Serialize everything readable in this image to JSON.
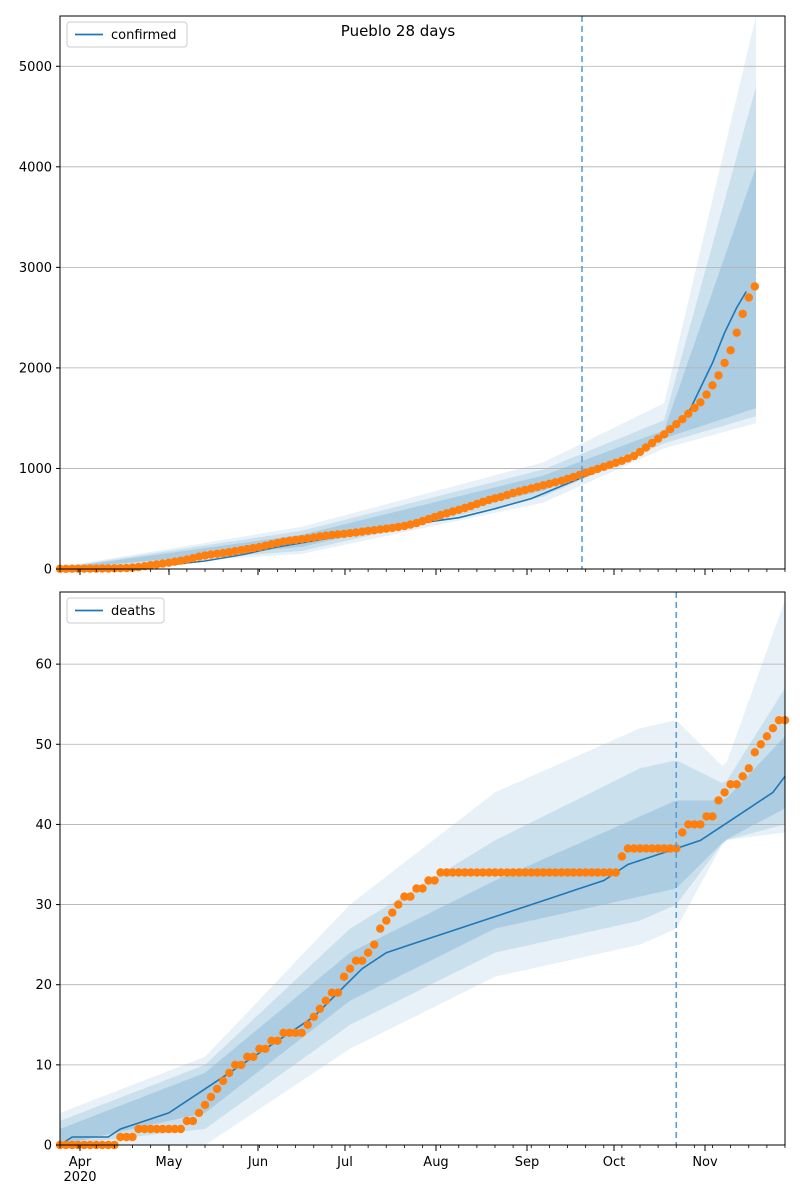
{
  "chart_data": [
    {
      "type": "line",
      "title": "Pueblo 28 days",
      "legend": {
        "placement": "top-left",
        "entries": [
          "confirmed"
        ]
      },
      "ylim": [
        0,
        5500
      ],
      "yticks": [
        0,
        1000,
        2000,
        3000,
        4000,
        5000
      ],
      "grid": "y",
      "forecast_start_day": 225,
      "series": [
        {
          "name": "confirmed",
          "kind": "model-line",
          "points": [
            [
              0,
              2
            ],
            [
              30,
              8
            ],
            [
              45,
              40
            ],
            [
              60,
              80
            ],
            [
              75,
              140
            ],
            [
              90,
              220
            ],
            [
              105,
              280
            ],
            [
              120,
              350
            ],
            [
              135,
              400
            ],
            [
              150,
              460
            ],
            [
              165,
              510
            ],
            [
              180,
              600
            ],
            [
              195,
              700
            ],
            [
              210,
              850
            ],
            [
              225,
              1000
            ],
            [
              240,
              1180
            ],
            [
              250,
              1340
            ],
            [
              260,
              1550
            ],
            [
              265,
              1800
            ],
            [
              270,
              2050
            ],
            [
              275,
              2350
            ],
            [
              280,
              2600
            ],
            [
              284,
              2760
            ]
          ]
        },
        {
          "kind": "observed-points",
          "points": [
            [
              0,
              2
            ],
            [
              10,
              3
            ],
            [
              20,
              5
            ],
            [
              28,
              10
            ],
            [
              33,
              20
            ],
            [
              38,
              40
            ],
            [
              43,
              55
            ],
            [
              48,
              75
            ],
            [
              53,
              95
            ],
            [
              58,
              125
            ],
            [
              63,
              145
            ],
            [
              68,
              160
            ],
            [
              73,
              180
            ],
            [
              78,
              200
            ],
            [
              83,
              220
            ],
            [
              88,
              250
            ],
            [
              93,
              275
            ],
            [
              98,
              290
            ],
            [
              103,
              305
            ],
            [
              108,
              325
            ],
            [
              113,
              340
            ],
            [
              118,
              350
            ],
            [
              123,
              365
            ],
            [
              128,
              380
            ],
            [
              133,
              395
            ],
            [
              138,
              410
            ],
            [
              143,
              430
            ],
            [
              148,
              460
            ],
            [
              153,
              500
            ],
            [
              158,
              540
            ],
            [
              163,
              575
            ],
            [
              168,
              610
            ],
            [
              173,
              650
            ],
            [
              178,
              690
            ],
            [
              183,
              720
            ],
            [
              188,
              760
            ],
            [
              193,
              790
            ],
            [
              198,
              820
            ],
            [
              203,
              850
            ],
            [
              208,
              880
            ],
            [
              213,
              920
            ],
            [
              218,
              960
            ],
            [
              223,
              1000
            ],
            [
              228,
              1040
            ],
            [
              233,
              1080
            ],
            [
              238,
              1130
            ],
            [
              242,
              1200
            ],
            [
              246,
              1270
            ],
            [
              250,
              1340
            ],
            [
              254,
              1420
            ],
            [
              258,
              1500
            ],
            [
              262,
              1590
            ],
            [
              266,
              1680
            ],
            [
              269,
              1790
            ],
            [
              272,
              1900
            ],
            [
              275,
              2050
            ],
            [
              278,
              2200
            ],
            [
              280,
              2350
            ],
            [
              282,
              2500
            ],
            [
              284,
              2650
            ],
            [
              286,
              2750
            ],
            [
              288,
              2830
            ],
            [
              289,
              2970
            ]
          ]
        }
      ],
      "bands": [
        {
          "lower": [
            [
              0,
              0
            ],
            [
              100,
              220
            ],
            [
              200,
              780
            ],
            [
              250,
              1300
            ],
            [
              288,
              1600
            ]
          ],
          "upper": [
            [
              0,
              10
            ],
            [
              100,
              340
            ],
            [
              200,
              930
            ],
            [
              250,
              1380
            ],
            [
              288,
              4000
            ]
          ]
        },
        {
          "lower": [
            [
              0,
              0
            ],
            [
              100,
              180
            ],
            [
              200,
              720
            ],
            [
              250,
              1250
            ],
            [
              288,
              1520
            ]
          ],
          "upper": [
            [
              0,
              15
            ],
            [
              100,
              380
            ],
            [
              200,
              990
            ],
            [
              250,
              1480
            ],
            [
              288,
              4800
            ]
          ]
        },
        {
          "lower": [
            [
              0,
              0
            ],
            [
              100,
              150
            ],
            [
              200,
              660
            ],
            [
              250,
              1200
            ],
            [
              288,
              1450
            ]
          ],
          "upper": [
            [
              0,
              20
            ],
            [
              100,
              420
            ],
            [
              200,
              1060
            ],
            [
              250,
              1650
            ],
            [
              288,
              5500
            ]
          ]
        }
      ]
    },
    {
      "type": "line",
      "legend": {
        "placement": "top-left",
        "entries": [
          "deaths"
        ]
      },
      "ylim": [
        0,
        69
      ],
      "yticks": [
        0,
        10,
        20,
        30,
        40,
        50,
        60
      ],
      "grid": "y",
      "xticks": [
        "Apr\n2020",
        "May",
        "Jun",
        "Jul",
        "Aug",
        "Sep",
        "Oct",
        "Nov"
      ],
      "forecast_start_day": 255,
      "series": [
        {
          "name": "deaths",
          "kind": "model-line",
          "points": [
            [
              0,
              0
            ],
            [
              5,
              1
            ],
            [
              20,
              1
            ],
            [
              25,
              2
            ],
            [
              35,
              3
            ],
            [
              45,
              4
            ],
            [
              55,
              6
            ],
            [
              65,
              8
            ],
            [
              75,
              10
            ],
            [
              85,
              12
            ],
            [
              95,
              14
            ],
            [
              105,
              16
            ],
            [
              115,
              19
            ],
            [
              125,
              22
            ],
            [
              135,
              24
            ],
            [
              145,
              25
            ],
            [
              155,
              26
            ],
            [
              165,
              27
            ],
            [
              175,
              28
            ],
            [
              185,
              29
            ],
            [
              195,
              30
            ],
            [
              205,
              31
            ],
            [
              215,
              32
            ],
            [
              225,
              33
            ],
            [
              235,
              35
            ],
            [
              245,
              36
            ],
            [
              255,
              37
            ],
            [
              265,
              38
            ],
            [
              275,
              40
            ],
            [
              285,
              42
            ],
            [
              295,
              44
            ],
            [
              300,
              46
            ]
          ]
        },
        {
          "kind": "observed-points",
          "points": [
            [
              0,
              0
            ],
            [
              10,
              0
            ],
            [
              20,
              0
            ],
            [
              30,
              1
            ],
            [
              35,
              2
            ],
            [
              40,
              2
            ],
            [
              45,
              2
            ],
            [
              50,
              2
            ],
            [
              55,
              3
            ],
            [
              60,
              5
            ],
            [
              65,
              7
            ],
            [
              70,
              9
            ],
            [
              75,
              10
            ],
            [
              80,
              11
            ],
            [
              85,
              12
            ],
            [
              90,
              13
            ],
            [
              95,
              14
            ],
            [
              100,
              14
            ],
            [
              105,
              16
            ],
            [
              110,
              18
            ],
            [
              115,
              19
            ],
            [
              120,
              22
            ],
            [
              125,
              23
            ],
            [
              130,
              25
            ],
            [
              135,
              28
            ],
            [
              140,
              30
            ],
            [
              145,
              31
            ],
            [
              150,
              32
            ],
            [
              155,
              33
            ],
            [
              160,
              34
            ],
            [
              170,
              34
            ],
            [
              180,
              34
            ],
            [
              190,
              34
            ],
            [
              200,
              34
            ],
            [
              210,
              34
            ],
            [
              220,
              34
            ],
            [
              230,
              34
            ],
            [
              235,
              37
            ],
            [
              240,
              37
            ],
            [
              245,
              37
            ],
            [
              250,
              37
            ],
            [
              255,
              37
            ],
            [
              260,
              40
            ],
            [
              265,
              40
            ],
            [
              270,
              41
            ],
            [
              275,
              44
            ],
            [
              280,
              45
            ],
            [
              285,
              47
            ],
            [
              290,
              50
            ],
            [
              295,
              52
            ],
            [
              300,
              53
            ]
          ]
        }
      ],
      "bands": [
        {
          "lower": [
            [
              0,
              0
            ],
            [
              60,
              4
            ],
            [
              120,
              18
            ],
            [
              180,
              27
            ],
            [
              240,
              31
            ],
            [
              255,
              32
            ],
            [
              275,
              38
            ],
            [
              300,
              42
            ]
          ],
          "upper": [
            [
              0,
              2
            ],
            [
              60,
              9
            ],
            [
              120,
              24
            ],
            [
              180,
              33
            ],
            [
              240,
              41
            ],
            [
              255,
              43
            ],
            [
              275,
              43
            ],
            [
              300,
              51
            ]
          ]
        },
        {
          "lower": [
            [
              0,
              0
            ],
            [
              60,
              2
            ],
            [
              120,
              15
            ],
            [
              180,
              24
            ],
            [
              240,
              28
            ],
            [
              255,
              30
            ],
            [
              275,
              38
            ],
            [
              300,
              40
            ]
          ],
          "upper": [
            [
              0,
              3
            ],
            [
              60,
              10
            ],
            [
              120,
              27
            ],
            [
              180,
              38
            ],
            [
              240,
              47
            ],
            [
              255,
              48
            ],
            [
              275,
              45
            ],
            [
              300,
              57
            ]
          ]
        },
        {
          "lower": [
            [
              0,
              0
            ],
            [
              60,
              0
            ],
            [
              120,
              12
            ],
            [
              180,
              21
            ],
            [
              240,
              25
            ],
            [
              255,
              27
            ],
            [
              275,
              38
            ],
            [
              300,
              39
            ]
          ],
          "upper": [
            [
              0,
              4
            ],
            [
              60,
              11
            ],
            [
              120,
              30
            ],
            [
              180,
              44
            ],
            [
              240,
              52
            ],
            [
              255,
              53
            ],
            [
              275,
              47
            ],
            [
              300,
              68
            ]
          ]
        }
      ]
    }
  ]
}
